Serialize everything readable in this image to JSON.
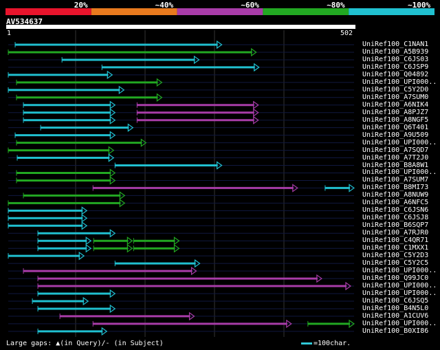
{
  "query_id": "AV534637",
  "ruler": {
    "start": "1",
    "end": "502"
  },
  "query_length": 502,
  "identity_legend": [
    {
      "label": "20%",
      "color": "#e8142c"
    },
    {
      "label": "~40%",
      "color": "#e87a1e"
    },
    {
      "label": "~60%",
      "color": "#a83ca8"
    },
    {
      "label": "~80%",
      "color": "#22a822"
    },
    {
      "label": "~100%",
      "color": "#20c0d0"
    }
  ],
  "hits": [
    {
      "name": "UniRef100_C1NAN1",
      "segs": [
        [
          10,
          310,
          4
        ]
      ]
    },
    {
      "name": "UniRef100_A5B939",
      "segs": [
        [
          0,
          360,
          3
        ]
      ]
    },
    {
      "name": "UniRef100_C6JS03",
      "segs": [
        [
          78,
          277,
          4
        ]
      ]
    },
    {
      "name": "UniRef100_C6JSP9",
      "segs": [
        [
          136,
          364,
          4
        ]
      ]
    },
    {
      "name": "UniRef100_Q04892",
      "segs": [
        [
          0,
          151,
          4
        ]
      ]
    },
    {
      "name": "UniRef100_UPI000..",
      "segs": [
        [
          12,
          223,
          3
        ]
      ]
    },
    {
      "name": "UniRef100_C5Y2D0",
      "segs": [
        [
          0,
          168,
          4
        ]
      ]
    },
    {
      "name": "UniRef100_A7SUM0",
      "segs": [
        [
          12,
          223,
          3
        ]
      ]
    },
    {
      "name": "UniRef100_A6NIK4",
      "segs": [
        [
          22,
          155,
          4
        ],
        [
          187,
          363,
          2
        ]
      ]
    },
    {
      "name": "UniRef100_A8PJZ7",
      "segs": [
        [
          22,
          155,
          4
        ],
        [
          187,
          363,
          2
        ]
      ]
    },
    {
      "name": "UniRef100_A8NGF5",
      "segs": [
        [
          22,
          155,
          4
        ],
        [
          187,
          363,
          2
        ]
      ]
    },
    {
      "name": "UniRef100_Q6T401",
      "segs": [
        [
          47,
          181,
          4
        ]
      ]
    },
    {
      "name": "UniRef100_A9U509",
      "segs": [
        [
          10,
          155,
          4
        ]
      ]
    },
    {
      "name": "UniRef100_UPI000..",
      "segs": [
        [
          12,
          200,
          3
        ]
      ]
    },
    {
      "name": "UniRef100_A7SQD7",
      "segs": [
        [
          0,
          153,
          3
        ]
      ]
    },
    {
      "name": "UniRef100_A7T2J0",
      "segs": [
        [
          13,
          153,
          4
        ]
      ]
    },
    {
      "name": "UniRef100_B8A8W1",
      "segs": [
        [
          155,
          310,
          4
        ]
      ]
    },
    {
      "name": "UniRef100_UPI000..",
      "segs": [
        [
          12,
          155,
          3
        ]
      ]
    },
    {
      "name": "UniRef100_A7SUM7",
      "segs": [
        [
          12,
          155,
          3
        ]
      ]
    },
    {
      "name": "UniRef100_B8MI73",
      "segs": [
        [
          123,
          420,
          2
        ],
        [
          460,
          502,
          4
        ]
      ]
    },
    {
      "name": "UniRef100_A8NUW9",
      "segs": [
        [
          22,
          169,
          3
        ]
      ]
    },
    {
      "name": "UniRef100_A6NFC5",
      "segs": [
        [
          0,
          169,
          3
        ]
      ]
    },
    {
      "name": "UniRef100_C6JSN6",
      "segs": [
        [
          0,
          114,
          4
        ]
      ]
    },
    {
      "name": "UniRef100_C6JSJ8",
      "segs": [
        [
          0,
          114,
          4
        ]
      ]
    },
    {
      "name": "UniRef100_B6SQP7",
      "segs": [
        [
          0,
          114,
          4
        ]
      ]
    },
    {
      "name": "UniRef100_A7RJR0",
      "segs": [
        [
          43,
          155,
          4
        ]
      ]
    },
    {
      "name": "UniRef100_C4QR71",
      "segs": [
        [
          43,
          120,
          4
        ],
        [
          124,
          180,
          3
        ],
        [
          182,
          248,
          3
        ]
      ]
    },
    {
      "name": "UniRef100_C1MXX1",
      "segs": [
        [
          43,
          120,
          4
        ],
        [
          124,
          180,
          3
        ],
        [
          182,
          248,
          3
        ]
      ]
    },
    {
      "name": "UniRef100_C5Y2D3",
      "segs": [
        [
          0,
          110,
          4
        ]
      ]
    },
    {
      "name": "UniRef100_C5Y2C5",
      "segs": [
        [
          155,
          278,
          4
        ]
      ]
    },
    {
      "name": "UniRef100_UPI000..",
      "segs": [
        [
          22,
          273,
          2
        ]
      ]
    },
    {
      "name": "UniRef100_Q99JC0",
      "segs": [
        [
          43,
          455,
          2
        ]
      ]
    },
    {
      "name": "UniRef100_UPI000..",
      "segs": [
        [
          43,
          497,
          2
        ]
      ]
    },
    {
      "name": "UniRef100_UPI000..",
      "segs": [
        [
          43,
          155,
          4
        ]
      ]
    },
    {
      "name": "UniRef100_C6JSQ5",
      "segs": [
        [
          35,
          116,
          4
        ]
      ]
    },
    {
      "name": "UniRef100_B4N5L0",
      "segs": [
        [
          43,
          155,
          4
        ]
      ]
    },
    {
      "name": "UniRef100_A1CUV6",
      "segs": [
        [
          75,
          270,
          2
        ]
      ]
    },
    {
      "name": "UniRef100_UPI000..",
      "segs": [
        [
          123,
          411,
          2
        ],
        [
          435,
          502,
          3
        ]
      ]
    },
    {
      "name": "UniRef100_B0XI86",
      "segs": [
        [
          43,
          143,
          4
        ]
      ]
    }
  ],
  "footer": {
    "gaps_text": "Large gaps: ▲(in Query)/- (in Subject)",
    "scale_text": "=100char."
  }
}
